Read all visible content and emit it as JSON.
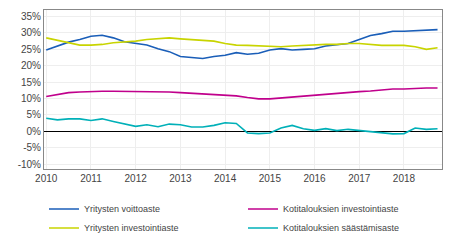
{
  "chart_data": {
    "type": "line",
    "x": [
      2010.0,
      2010.25,
      2010.5,
      2010.75,
      2011.0,
      2011.25,
      2011.5,
      2011.75,
      2012.0,
      2012.25,
      2012.5,
      2012.75,
      2013.0,
      2013.25,
      2013.5,
      2013.75,
      2014.0,
      2014.25,
      2014.5,
      2014.75,
      2015.0,
      2015.25,
      2015.5,
      2015.75,
      2016.0,
      2016.25,
      2016.5,
      2016.75,
      2017.0,
      2017.25,
      2017.5,
      2017.75,
      2018.0,
      2018.25,
      2018.5,
      2018.75
    ],
    "series": [
      {
        "name": "Yritysten voittoaste",
        "color": "#1a5eb8",
        "values": [
          0.248,
          0.26,
          0.272,
          0.28,
          0.29,
          0.293,
          0.285,
          0.273,
          0.267,
          0.263,
          0.252,
          0.243,
          0.228,
          0.224,
          0.222,
          0.228,
          0.232,
          0.24,
          0.235,
          0.238,
          0.248,
          0.252,
          0.248,
          0.25,
          0.252,
          0.26,
          0.263,
          0.268,
          0.28,
          0.292,
          0.298,
          0.305,
          0.305,
          0.307,
          0.307,
          0.31
        ]
      },
      {
        "name": "Kotitalouksien investointiaste",
        "color": "#c0008c",
        "values": [
          0.106,
          0.113,
          0.118,
          0.12,
          0.122,
          0.122,
          0.122,
          0.122,
          0.122,
          0.122,
          0.122,
          0.12,
          0.118,
          0.116,
          0.114,
          0.112,
          0.11,
          0.108,
          0.103,
          0.099,
          0.099,
          0.102,
          0.105,
          0.108,
          0.109,
          0.113,
          0.116,
          0.119,
          0.121,
          0.123,
          0.126,
          0.129,
          0.129,
          0.131,
          0.132,
          0.132
        ]
      },
      {
        "name": "Yritysten investointiaste",
        "color": "#c8d400",
        "values": [
          0.285,
          0.278,
          0.27,
          0.263,
          0.263,
          0.265,
          0.27,
          0.272,
          0.275,
          0.28,
          0.283,
          0.285,
          0.282,
          0.28,
          0.278,
          0.275,
          0.268,
          0.263,
          0.262,
          0.26,
          0.258,
          0.258,
          0.26,
          0.262,
          0.263,
          0.265,
          0.265,
          0.268,
          0.268,
          0.265,
          0.262,
          0.262,
          0.262,
          0.258,
          0.25,
          0.255
        ]
      },
      {
        "name": "Kotitalouksien säästämisaste",
        "color": "#00b0b8",
        "values": [
          0.04,
          0.035,
          0.038,
          0.038,
          0.033,
          0.038,
          0.03,
          0.022,
          0.015,
          0.02,
          0.014,
          0.022,
          0.02,
          0.013,
          0.013,
          0.018,
          0.026,
          0.024,
          -0.005,
          -0.007,
          -0.005,
          0.01,
          0.018,
          0.008,
          0.003,
          0.008,
          0.002,
          0.006,
          0.003,
          -0.001,
          -0.004,
          -0.008,
          -0.007,
          0.01,
          0.006,
          0.008
        ]
      }
    ],
    "xlim": [
      2009.95,
      2018.85
    ],
    "xticks": [
      2010,
      2011,
      2012,
      2013,
      2014,
      2015,
      2016,
      2017,
      2018
    ],
    "ylim": [
      -0.115,
      0.37
    ],
    "yticks": [
      {
        "value": -0.1,
        "label": "-10%"
      },
      {
        "value": -0.05,
        "label": "-5%"
      },
      {
        "value": 0.0,
        "label": "0%"
      },
      {
        "value": 0.05,
        "label": "5%"
      },
      {
        "value": 0.1,
        "label": "10%"
      },
      {
        "value": 0.15,
        "label": "15%"
      },
      {
        "value": 0.2,
        "label": "20%"
      },
      {
        "value": 0.25,
        "label": "25%"
      },
      {
        "value": 0.3,
        "label": "30%"
      },
      {
        "value": 0.35,
        "label": "35%"
      }
    ],
    "grid": true,
    "legend": "lower left"
  }
}
